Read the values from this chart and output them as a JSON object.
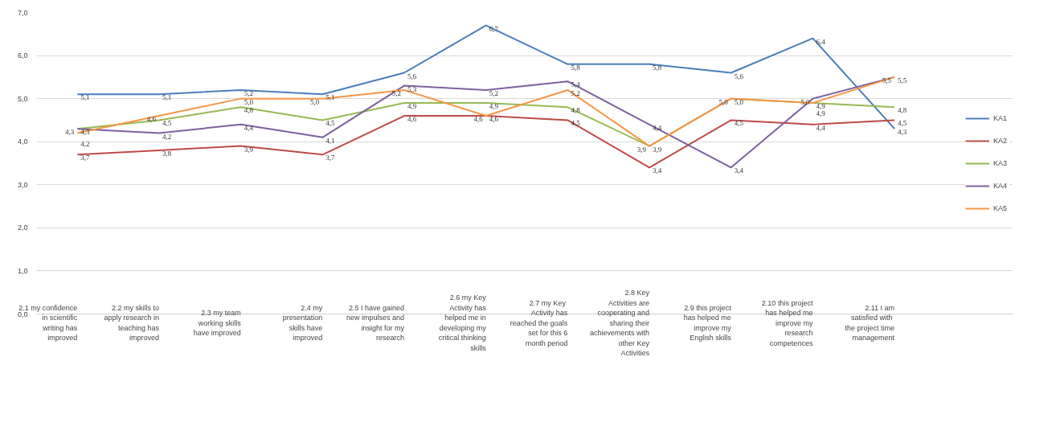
{
  "chart_data": {
    "type": "line",
    "categories": [
      "2.1 my confidence in scientific writing has improved",
      "2.2 my skills to apply research in teaching has improved",
      "2.3 my team working skills have improved",
      "2.4 my presentation skills have improved",
      "2.5 I have gained new impulses and insight for my research",
      "2.6 my Key Activity has helped me in developing my critical thinking skills",
      "2.7  my Key Activity has reached the goals set for this 6 month period",
      "2.8 Key Activities are cooperating and sharing their achievements with other Key Activities",
      "2.9 this project has helped me improve my English skills",
      "2.10 this project has helped me improve my research competences",
      "2.11 I am satisfied  with the project time management"
    ],
    "series": [
      {
        "name": "KA1",
        "color": "#4a7ebb",
        "values": [
          5.1,
          5.1,
          5.2,
          5.1,
          5.6,
          6.7,
          5.8,
          5.8,
          5.6,
          6.4,
          4.3
        ],
        "value_labels": [
          "5,1",
          "5,1",
          "5,2",
          "5,1",
          "5,6",
          "6,7",
          "5,8",
          "5,8",
          "5,6",
          "6,4",
          "4,3"
        ]
      },
      {
        "name": "KA2",
        "color": "#be4b48",
        "values": [
          3.7,
          3.8,
          3.9,
          3.7,
          4.6,
          4.6,
          4.5,
          3.4,
          4.5,
          4.4,
          4.5
        ],
        "value_labels": [
          "3,7",
          "3,8",
          "3,9",
          "3,7",
          "4,6",
          "4,6",
          "4,5",
          "3,4",
          "4,5",
          "4,4",
          "4,5"
        ]
      },
      {
        "name": "KA3",
        "color": "#98b954",
        "values": [
          4.3,
          4.5,
          4.8,
          4.5,
          4.9,
          4.9,
          4.8,
          3.9,
          5.0,
          4.9,
          4.8
        ],
        "value_labels": [
          "4,3",
          "4,5",
          "4,8",
          "4,5",
          "4,9",
          "4,9",
          "4,8",
          "3,9",
          "5,0",
          "4,9",
          "4,8"
        ]
      },
      {
        "name": "KA4",
        "color": "#7d60a0",
        "values": [
          4.3,
          4.2,
          4.4,
          4.1,
          5.3,
          5.2,
          5.4,
          4.4,
          3.4,
          5.0,
          5.5
        ],
        "value_labels": [
          "4,3",
          "4,2",
          "4,4",
          "4,1",
          "5,3",
          "5,2",
          "5,4",
          "4,4",
          "3,4",
          "5,0",
          "5,5"
        ]
      },
      {
        "name": "KA5",
        "color": "#f79646",
        "values": [
          4.2,
          4.6,
          5.0,
          5.0,
          5.2,
          4.6,
          5.2,
          3.9,
          5.0,
          4.9,
          5.5
        ],
        "value_labels": [
          "4,2",
          "4,6",
          "5,0",
          "5,0",
          "5,2",
          "4,6",
          "5,2",
          "3,9",
          "5,0",
          "4,9",
          "5,5"
        ]
      }
    ],
    "ylim": [
      0,
      7
    ],
    "yticks": [
      {
        "value": 0,
        "label": "0,0"
      },
      {
        "value": 1,
        "label": "1,0"
      },
      {
        "value": 2,
        "label": "2,0"
      },
      {
        "value": 3,
        "label": "3,0"
      },
      {
        "value": 4,
        "label": "4,0"
      },
      {
        "value": 5,
        "label": "5,0"
      },
      {
        "value": 6,
        "label": "6,0"
      },
      {
        "value": 7,
        "label": "7,0"
      }
    ],
    "grid": "y",
    "legend": "right",
    "marker": "none",
    "line_style": "solid"
  }
}
